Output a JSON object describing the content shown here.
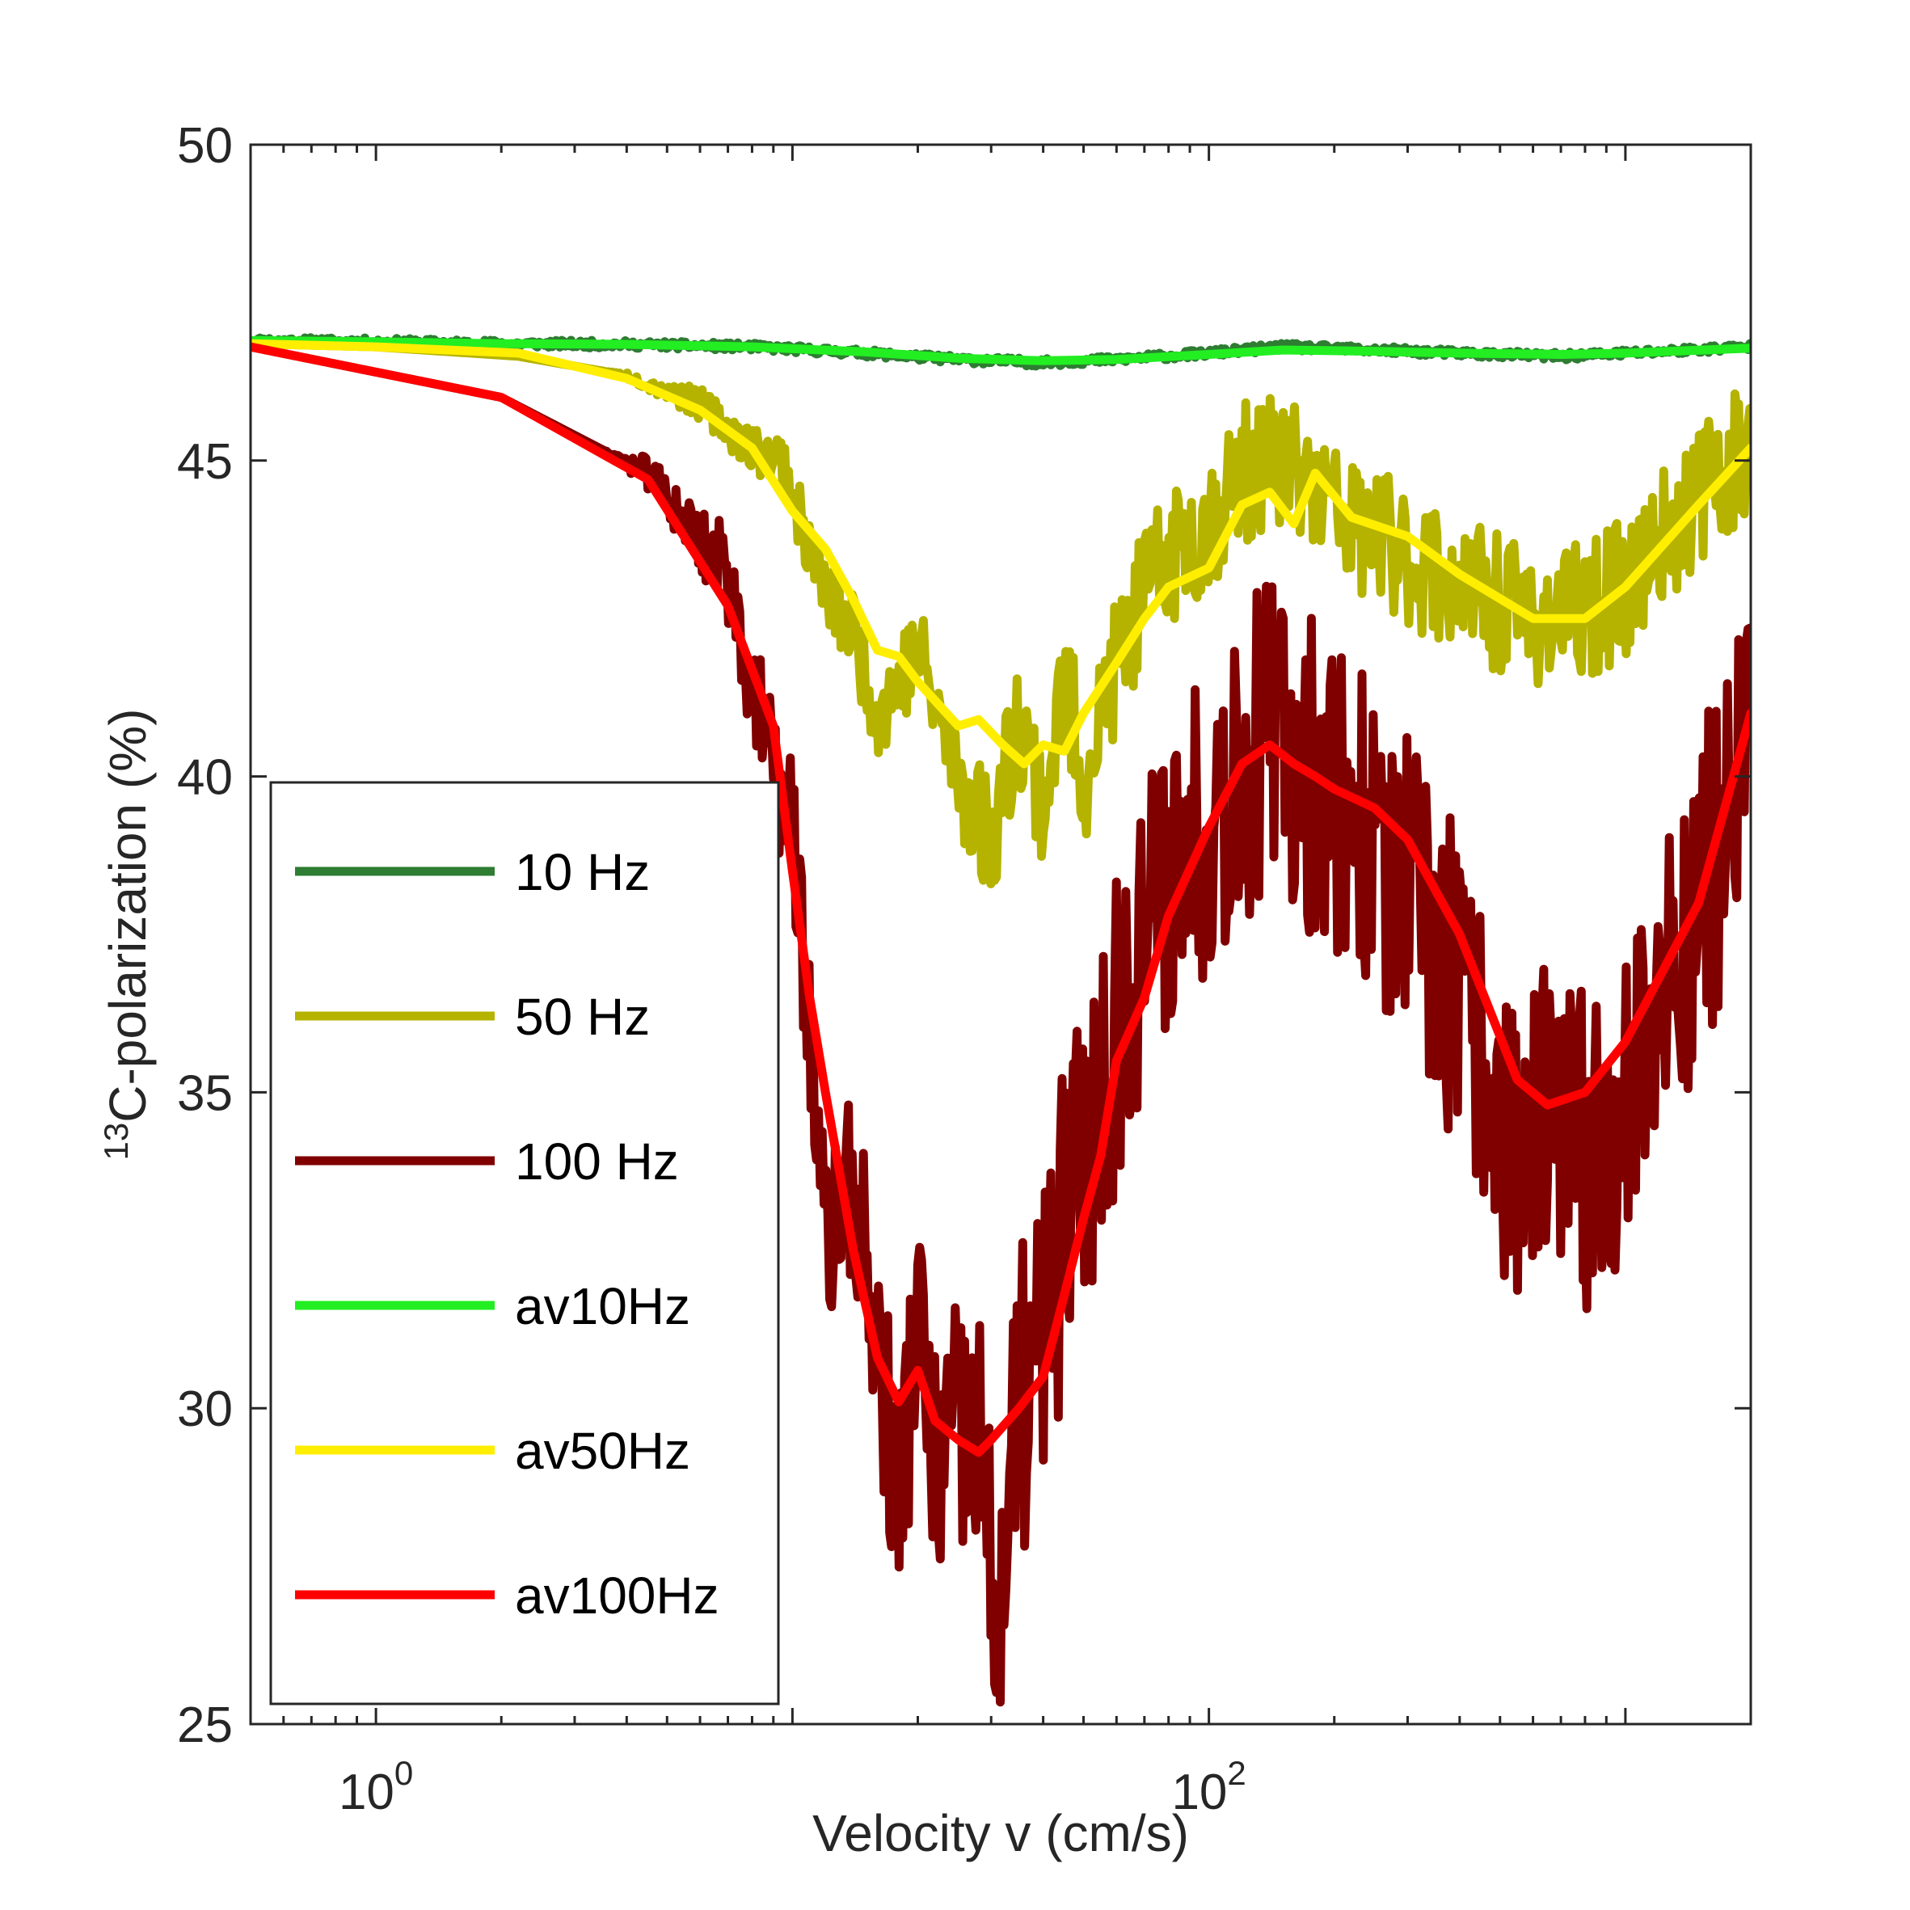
{
  "chart_data": {
    "type": "line",
    "title": "",
    "xlabel": "Velocity v (cm/s)",
    "ylabel_sup": "13",
    "ylabel_main": "C-polarization (%)",
    "xscale": "log",
    "xlim": [
      0.5,
      2000
    ],
    "ylim": [
      25,
      50
    ],
    "yticks": [
      {
        "value": 25,
        "label": "25"
      },
      {
        "value": 30,
        "label": "30"
      },
      {
        "value": 35,
        "label": "35"
      },
      {
        "value": 40,
        "label": "40"
      },
      {
        "value": 45,
        "label": "45"
      },
      {
        "value": 50,
        "label": "50"
      }
    ],
    "xticks": [
      {
        "value": 1,
        "base": "10",
        "exp": "0"
      },
      {
        "value": 100,
        "base": "10",
        "exp": "2"
      }
    ],
    "legend_position": "lower-left",
    "series": [
      {
        "name": "10 Hz",
        "color": "#2e7d32",
        "noise": 0.06,
        "seed": 11,
        "x": [
          0.5,
          1,
          2,
          4,
          8,
          15,
          25,
          40,
          60,
          100,
          150,
          250,
          400,
          700,
          1000,
          2000
        ],
        "y": [
          46.9,
          46.88,
          46.85,
          46.84,
          46.8,
          46.7,
          46.6,
          46.55,
          46.6,
          46.7,
          46.8,
          46.75,
          46.7,
          46.65,
          46.7,
          46.8
        ]
      },
      {
        "name": "50 Hz",
        "color": "#b5b300",
        "noise": 1.1,
        "seed": 23,
        "x": [
          0.5,
          1,
          2.2,
          4,
          6,
          8,
          9.5,
          10.5,
          12,
          14,
          16,
          20,
          25,
          30,
          35,
          40,
          45,
          50,
          60,
          70,
          80,
          100,
          120,
          150,
          180,
          220,
          300,
          400,
          600,
          800,
          1000,
          1500,
          2000
        ],
        "y": [
          46.85,
          46.8,
          46.65,
          46.35,
          45.9,
          45.2,
          45.0,
          44.0,
          42.9,
          42.3,
          41.0,
          42.0,
          40.0,
          39.0,
          41.0,
          39.5,
          41.5,
          40.0,
          41.8,
          42.8,
          43.5,
          44.0,
          44.8,
          45.0,
          44.5,
          44.0,
          43.5,
          43.0,
          42.5,
          42.6,
          43.0,
          44.5,
          45.3
        ]
      },
      {
        "name": "100 Hz",
        "color": "#800000",
        "noise": 2.6,
        "seed": 37,
        "x": [
          0.5,
          1,
          2,
          4.5,
          7,
          9,
          10,
          11,
          12,
          14,
          16,
          18,
          20,
          22,
          24,
          28,
          30,
          32,
          35,
          40,
          45,
          55,
          65,
          80,
          100,
          130,
          150,
          180,
          220,
          300,
          400,
          550,
          650,
          800,
          1000,
          1500,
          2000
        ],
        "y": [
          46.8,
          46.4,
          46.0,
          44.8,
          43.2,
          40.0,
          39.2,
          36.0,
          32.5,
          33.5,
          31.0,
          28.5,
          31.5,
          28.8,
          29.5,
          29.5,
          27.0,
          27.1,
          30.0,
          31.0,
          33.0,
          35.0,
          37.0,
          38.5,
          39.5,
          40.5,
          40.5,
          40.0,
          39.5,
          38.0,
          36.5,
          34.0,
          34.5,
          34.0,
          35.0,
          38.0,
          40.5
        ]
      },
      {
        "name": "av10Hz",
        "color": "#22ee22",
        "noise": 0,
        "seed": 1,
        "x": [
          0.5,
          1,
          2,
          4,
          8,
          15,
          25,
          40,
          60,
          100,
          150,
          250,
          400,
          700,
          1000,
          2000
        ],
        "y": [
          46.9,
          46.88,
          46.85,
          46.84,
          46.8,
          46.72,
          46.62,
          46.58,
          46.6,
          46.68,
          46.75,
          46.73,
          46.7,
          46.68,
          46.7,
          46.78
        ]
      },
      {
        "name": "av50Hz",
        "color": "#ffee00",
        "noise": 0,
        "seed": 1,
        "x": [
          0.5,
          1,
          2.2,
          4,
          6,
          8,
          10,
          12,
          14,
          16,
          18,
          20,
          22,
          25,
          28,
          32,
          36,
          40,
          45,
          50,
          60,
          70,
          80,
          100,
          120,
          140,
          160,
          180,
          220,
          300,
          400,
          600,
          800,
          1000,
          1500,
          2000
        ],
        "y": [
          46.85,
          46.8,
          46.7,
          46.3,
          45.8,
          45.2,
          44.2,
          43.6,
          42.8,
          42.0,
          41.9,
          41.5,
          41.2,
          40.8,
          40.9,
          40.5,
          40.2,
          40.5,
          40.4,
          41.0,
          41.8,
          42.5,
          43.0,
          43.3,
          44.3,
          44.5,
          44.0,
          44.8,
          44.1,
          43.8,
          43.2,
          42.5,
          42.5,
          43.0,
          44.3,
          45.2
        ]
      },
      {
        "name": "av100Hz",
        "color": "#ff0000",
        "noise": 0,
        "seed": 1,
        "x": [
          0.5,
          1,
          2,
          4.5,
          7,
          9,
          10,
          11,
          12,
          14,
          16,
          18,
          20,
          22,
          25,
          28,
          30,
          35,
          40,
          45,
          50,
          55,
          60,
          70,
          80,
          100,
          120,
          140,
          160,
          180,
          200,
          250,
          300,
          400,
          550,
          650,
          800,
          1000,
          1500,
          2000
        ],
        "y": [
          46.8,
          46.4,
          46.0,
          44.7,
          42.7,
          40.8,
          38.5,
          36.5,
          35.0,
          32.5,
          30.8,
          30.1,
          30.6,
          29.8,
          29.5,
          29.3,
          29.5,
          30.0,
          30.5,
          31.8,
          33.0,
          34.0,
          35.5,
          36.5,
          37.8,
          39.2,
          40.2,
          40.5,
          40.2,
          40.0,
          39.8,
          39.5,
          39.0,
          37.5,
          35.2,
          34.8,
          35.0,
          35.8,
          38.0,
          41.0
        ]
      }
    ]
  }
}
